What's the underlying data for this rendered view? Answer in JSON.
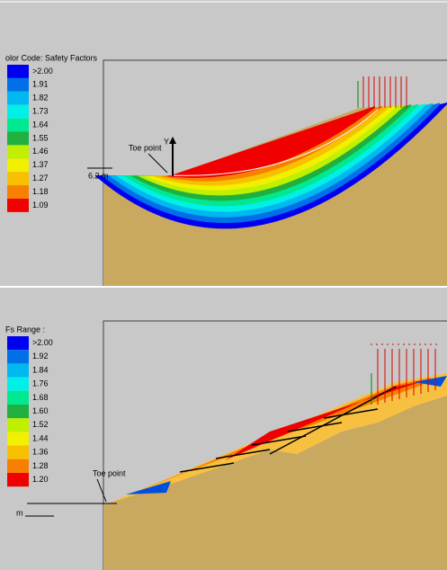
{
  "panels": [
    {
      "legend": {
        "title": "olor Code: Safety Factors",
        "items": [
          {
            "label": ">2.00",
            "color": "#0000f0"
          },
          {
            "label": "1.91",
            "color": "#0070e8"
          },
          {
            "label": "1.82",
            "color": "#00b8f0"
          },
          {
            "label": "1.73",
            "color": "#00f0e8"
          },
          {
            "label": "1.64",
            "color": "#00e890"
          },
          {
            "label": "1.55",
            "color": "#20b040"
          },
          {
            "label": "1.46",
            "color": "#c0f000"
          },
          {
            "label": "1.37",
            "color": "#f0f000"
          },
          {
            "label": "1.27",
            "color": "#f8c000"
          },
          {
            "label": "1.18",
            "color": "#f88000"
          },
          {
            "label": "1.09",
            "color": "#f00000"
          }
        ]
      },
      "annotations": {
        "toe": "Toe point",
        "axis": "Y",
        "height": "6.2 m"
      }
    },
    {
      "legend": {
        "title": "Fs  Range :",
        "items": [
          {
            "label": ">2.00",
            "color": "#0000f0"
          },
          {
            "label": "1.92",
            "color": "#0070e8"
          },
          {
            "label": "1.84",
            "color": "#00b8f0"
          },
          {
            "label": "1.76",
            "color": "#00f0e8"
          },
          {
            "label": "1.68",
            "color": "#00e890"
          },
          {
            "label": "1.60",
            "color": "#20b040"
          },
          {
            "label": "1.52",
            "color": "#c0f000"
          },
          {
            "label": "1.44",
            "color": "#f0f000"
          },
          {
            "label": "1.36",
            "color": "#f8c000"
          },
          {
            "label": "1.28",
            "color": "#f88000"
          },
          {
            "label": "1.20",
            "color": "#f00000"
          }
        ]
      },
      "annotations": {
        "toe": "Toe point",
        "height": "m"
      }
    }
  ]
}
